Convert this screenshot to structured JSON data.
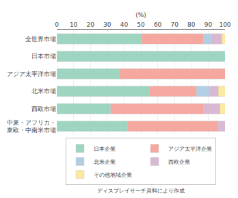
{
  "chart_data": {
    "type": "bar",
    "orientation": "horizontal",
    "stacked": true,
    "xlabel": "(%)",
    "annotations": [
      "ディスプレイサーチ資料により作成"
    ],
    "categories": [
      "全世界市場",
      "日本市場",
      "アジア太平洋市場",
      "北米市場",
      "西欧市場",
      "中東・アフリカ・\n東欧・中南米市場"
    ],
    "series": [
      {
        "name": "日本企業",
        "color": "#9dd5c0",
        "values": [
          50,
          100,
          37,
          55,
          32,
          42
        ]
      },
      {
        "name": "アジア太平洋企業",
        "color": "#f4a8a0",
        "values": [
          37,
          0,
          63,
          28,
          55,
          54
        ]
      },
      {
        "name": "北米企業",
        "color": "#b3cde3",
        "values": [
          5,
          0,
          0,
          8,
          0,
          0
        ]
      },
      {
        "name": "西欧企業",
        "color": "#d9b8d4",
        "values": [
          6,
          0,
          0,
          5,
          10,
          4
        ]
      },
      {
        "name": "その他地域企業",
        "color": "#fde8a0",
        "values": [
          2,
          0,
          0,
          4,
          3,
          0
        ]
      }
    ],
    "xlim": [
      0,
      100
    ],
    "xticks": [
      0,
      10,
      20,
      30,
      40,
      50,
      60,
      70,
      80,
      90,
      100
    ],
    "grid": true,
    "legend": "bottom"
  }
}
